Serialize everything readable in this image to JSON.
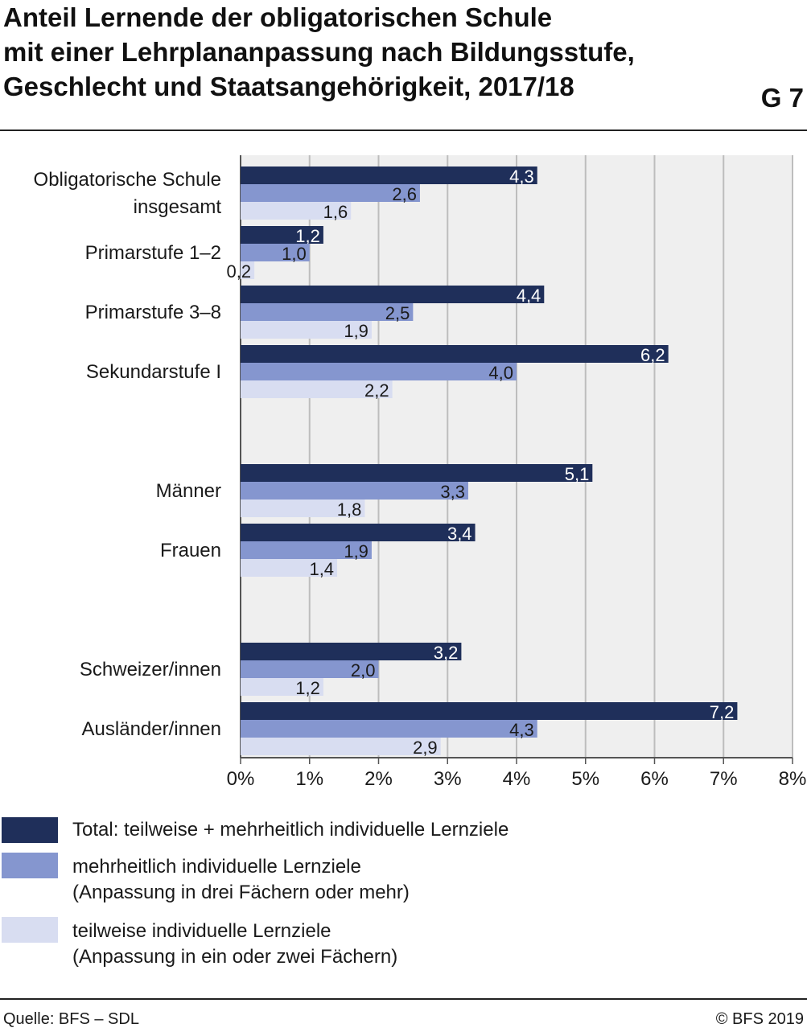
{
  "title_lines": [
    "Anteil Lernende der obligatorischen Schule",
    "mit einer Lehrplananpassung nach Bildungsstufe,",
    "Geschlecht und Staatsangehörigkeit, 2017/18"
  ],
  "graphic_number": "G 7",
  "chart_data": {
    "type": "bar",
    "orientation": "horizontal",
    "categories": [
      [
        "Obligatorische Schule",
        "insgesamt"
      ],
      [
        "Primarstufe 1–2"
      ],
      [
        "Primarstufe 3–8"
      ],
      [
        "Sekundarstufe I"
      ],
      [
        "Männer"
      ],
      [
        "Frauen"
      ],
      [
        "Schweizer/innen"
      ],
      [
        "Ausländer/innen"
      ]
    ],
    "group_breaks_after": [
      3,
      5
    ],
    "series": [
      {
        "name": "Total: teilweise + mehrheitlich individuelle Lernziele",
        "values": [
          4.3,
          1.2,
          4.4,
          6.2,
          5.1,
          3.4,
          3.2,
          7.2
        ],
        "labels": [
          "4,3",
          "1,2",
          "4,4",
          "6,2",
          "5,1",
          "3,4",
          "3,2",
          "7,2"
        ],
        "color": "#1f2f5a",
        "label_color": "#ffffff"
      },
      {
        "name": "mehrheitlich individuelle Lernziele (Anpassung in drei Fächern oder mehr)",
        "values": [
          2.6,
          1.0,
          2.5,
          4.0,
          3.3,
          1.9,
          2.0,
          4.3
        ],
        "labels": [
          "2,6",
          "1,0",
          "2,5",
          "4,0",
          "3,3",
          "1,9",
          "2,0",
          "4,3"
        ],
        "color": "#8596cf",
        "label_color": "#1a1a1a"
      },
      {
        "name": "teilweise individuelle Lernziele (Anpassung in ein oder zwei Fächern)",
        "values": [
          1.6,
          0.2,
          1.9,
          2.2,
          1.8,
          1.4,
          1.2,
          2.9
        ],
        "labels": [
          "1,6",
          "0,2",
          "1,9",
          "2,2",
          "1,8",
          "1,4",
          "1,2",
          "2,9"
        ],
        "color": "#d8ddf1",
        "label_color": "#1a1a1a"
      }
    ],
    "xlim": [
      0,
      8
    ],
    "x_ticks": [
      "0%",
      "1%",
      "2%",
      "3%",
      "4%",
      "5%",
      "6%",
      "7%",
      "8%"
    ],
    "grid": true,
    "plot_background": "#efefef",
    "grid_color": "#bdbdbd"
  },
  "legend": [
    {
      "lines": [
        "Total: teilweise + mehrheitlich individuelle Lernziele"
      ],
      "color": "#1f2f5a"
    },
    {
      "lines": [
        "mehrheitlich individuelle Lernziele",
        "(Anpassung in drei Fächern oder mehr)"
      ],
      "color": "#8596cf"
    },
    {
      "lines": [
        "teilweise individuelle Lernziele",
        "(Anpassung in ein oder zwei Fächern)"
      ],
      "color": "#d8ddf1"
    }
  ],
  "source": "Quelle: BFS – SDL",
  "copyright": "© BFS 2019"
}
